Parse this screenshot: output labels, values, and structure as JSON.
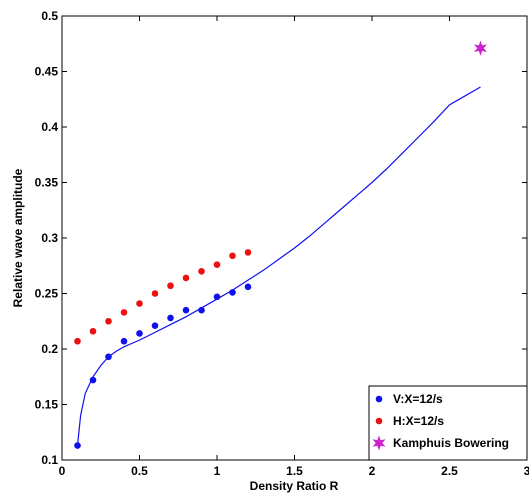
{
  "chart_data": {
    "type": "scatter",
    "title": "",
    "xlabel": "Density Ratio R",
    "ylabel": "Relative wave amplitude",
    "xlim": [
      0,
      3
    ],
    "ylim": [
      0.1,
      0.5
    ],
    "x_ticks": [
      "0",
      "0.5",
      "1",
      "1.5",
      "2",
      "2.5",
      "3"
    ],
    "y_ticks": [
      "0.1",
      "0.15",
      "0.2",
      "0.25",
      "0.3",
      "0.35",
      "0.4",
      "0.45",
      "0.5"
    ],
    "grid": false,
    "legend_position": "bottom-right",
    "series": [
      {
        "name": "V:X=12/s",
        "kind": "points",
        "marker": "dot",
        "color": "#1010ee",
        "x": [
          0.1,
          0.2,
          0.3,
          0.4,
          0.5,
          0.6,
          0.7,
          0.8,
          0.9,
          1.0,
          1.1,
          1.2
        ],
        "y": [
          0.113,
          0.172,
          0.193,
          0.207,
          0.214,
          0.221,
          0.228,
          0.235,
          0.235,
          0.247,
          0.251,
          0.256
        ]
      },
      {
        "name": "H:X=12/s",
        "kind": "points",
        "marker": "dot",
        "color": "#ee1010",
        "x": [
          0.1,
          0.2,
          0.3,
          0.4,
          0.5,
          0.6,
          0.7,
          0.8,
          0.9,
          1.0,
          1.1,
          1.2
        ],
        "y": [
          0.207,
          0.216,
          0.225,
          0.233,
          0.241,
          0.25,
          0.257,
          0.264,
          0.27,
          0.276,
          0.284,
          0.287
        ]
      },
      {
        "name": "Kamphuis Bowering",
        "kind": "points",
        "marker": "star",
        "color": "#cc22cc",
        "x": [
          2.7
        ],
        "y": [
          0.471
        ]
      },
      {
        "kind": "line",
        "color": "#1010ee",
        "x": [
          0.1,
          0.12,
          0.15,
          0.2,
          0.25,
          0.3,
          0.35,
          0.4,
          0.5,
          0.6,
          0.7,
          0.8,
          0.9,
          1.0,
          1.1,
          1.2,
          1.3,
          1.4,
          1.5,
          1.6,
          1.7,
          1.8,
          1.9,
          2.0,
          2.1,
          2.2,
          2.3,
          2.4,
          2.5,
          2.6,
          2.7
        ],
        "y": [
          0.113,
          0.14,
          0.16,
          0.175,
          0.185,
          0.193,
          0.198,
          0.202,
          0.208,
          0.215,
          0.222,
          0.229,
          0.237,
          0.245,
          0.253,
          0.262,
          0.271,
          0.281,
          0.291,
          0.302,
          0.314,
          0.326,
          0.338,
          0.35,
          0.363,
          0.377,
          0.391,
          0.405,
          0.42,
          0.428,
          0.436
        ]
      }
    ]
  }
}
